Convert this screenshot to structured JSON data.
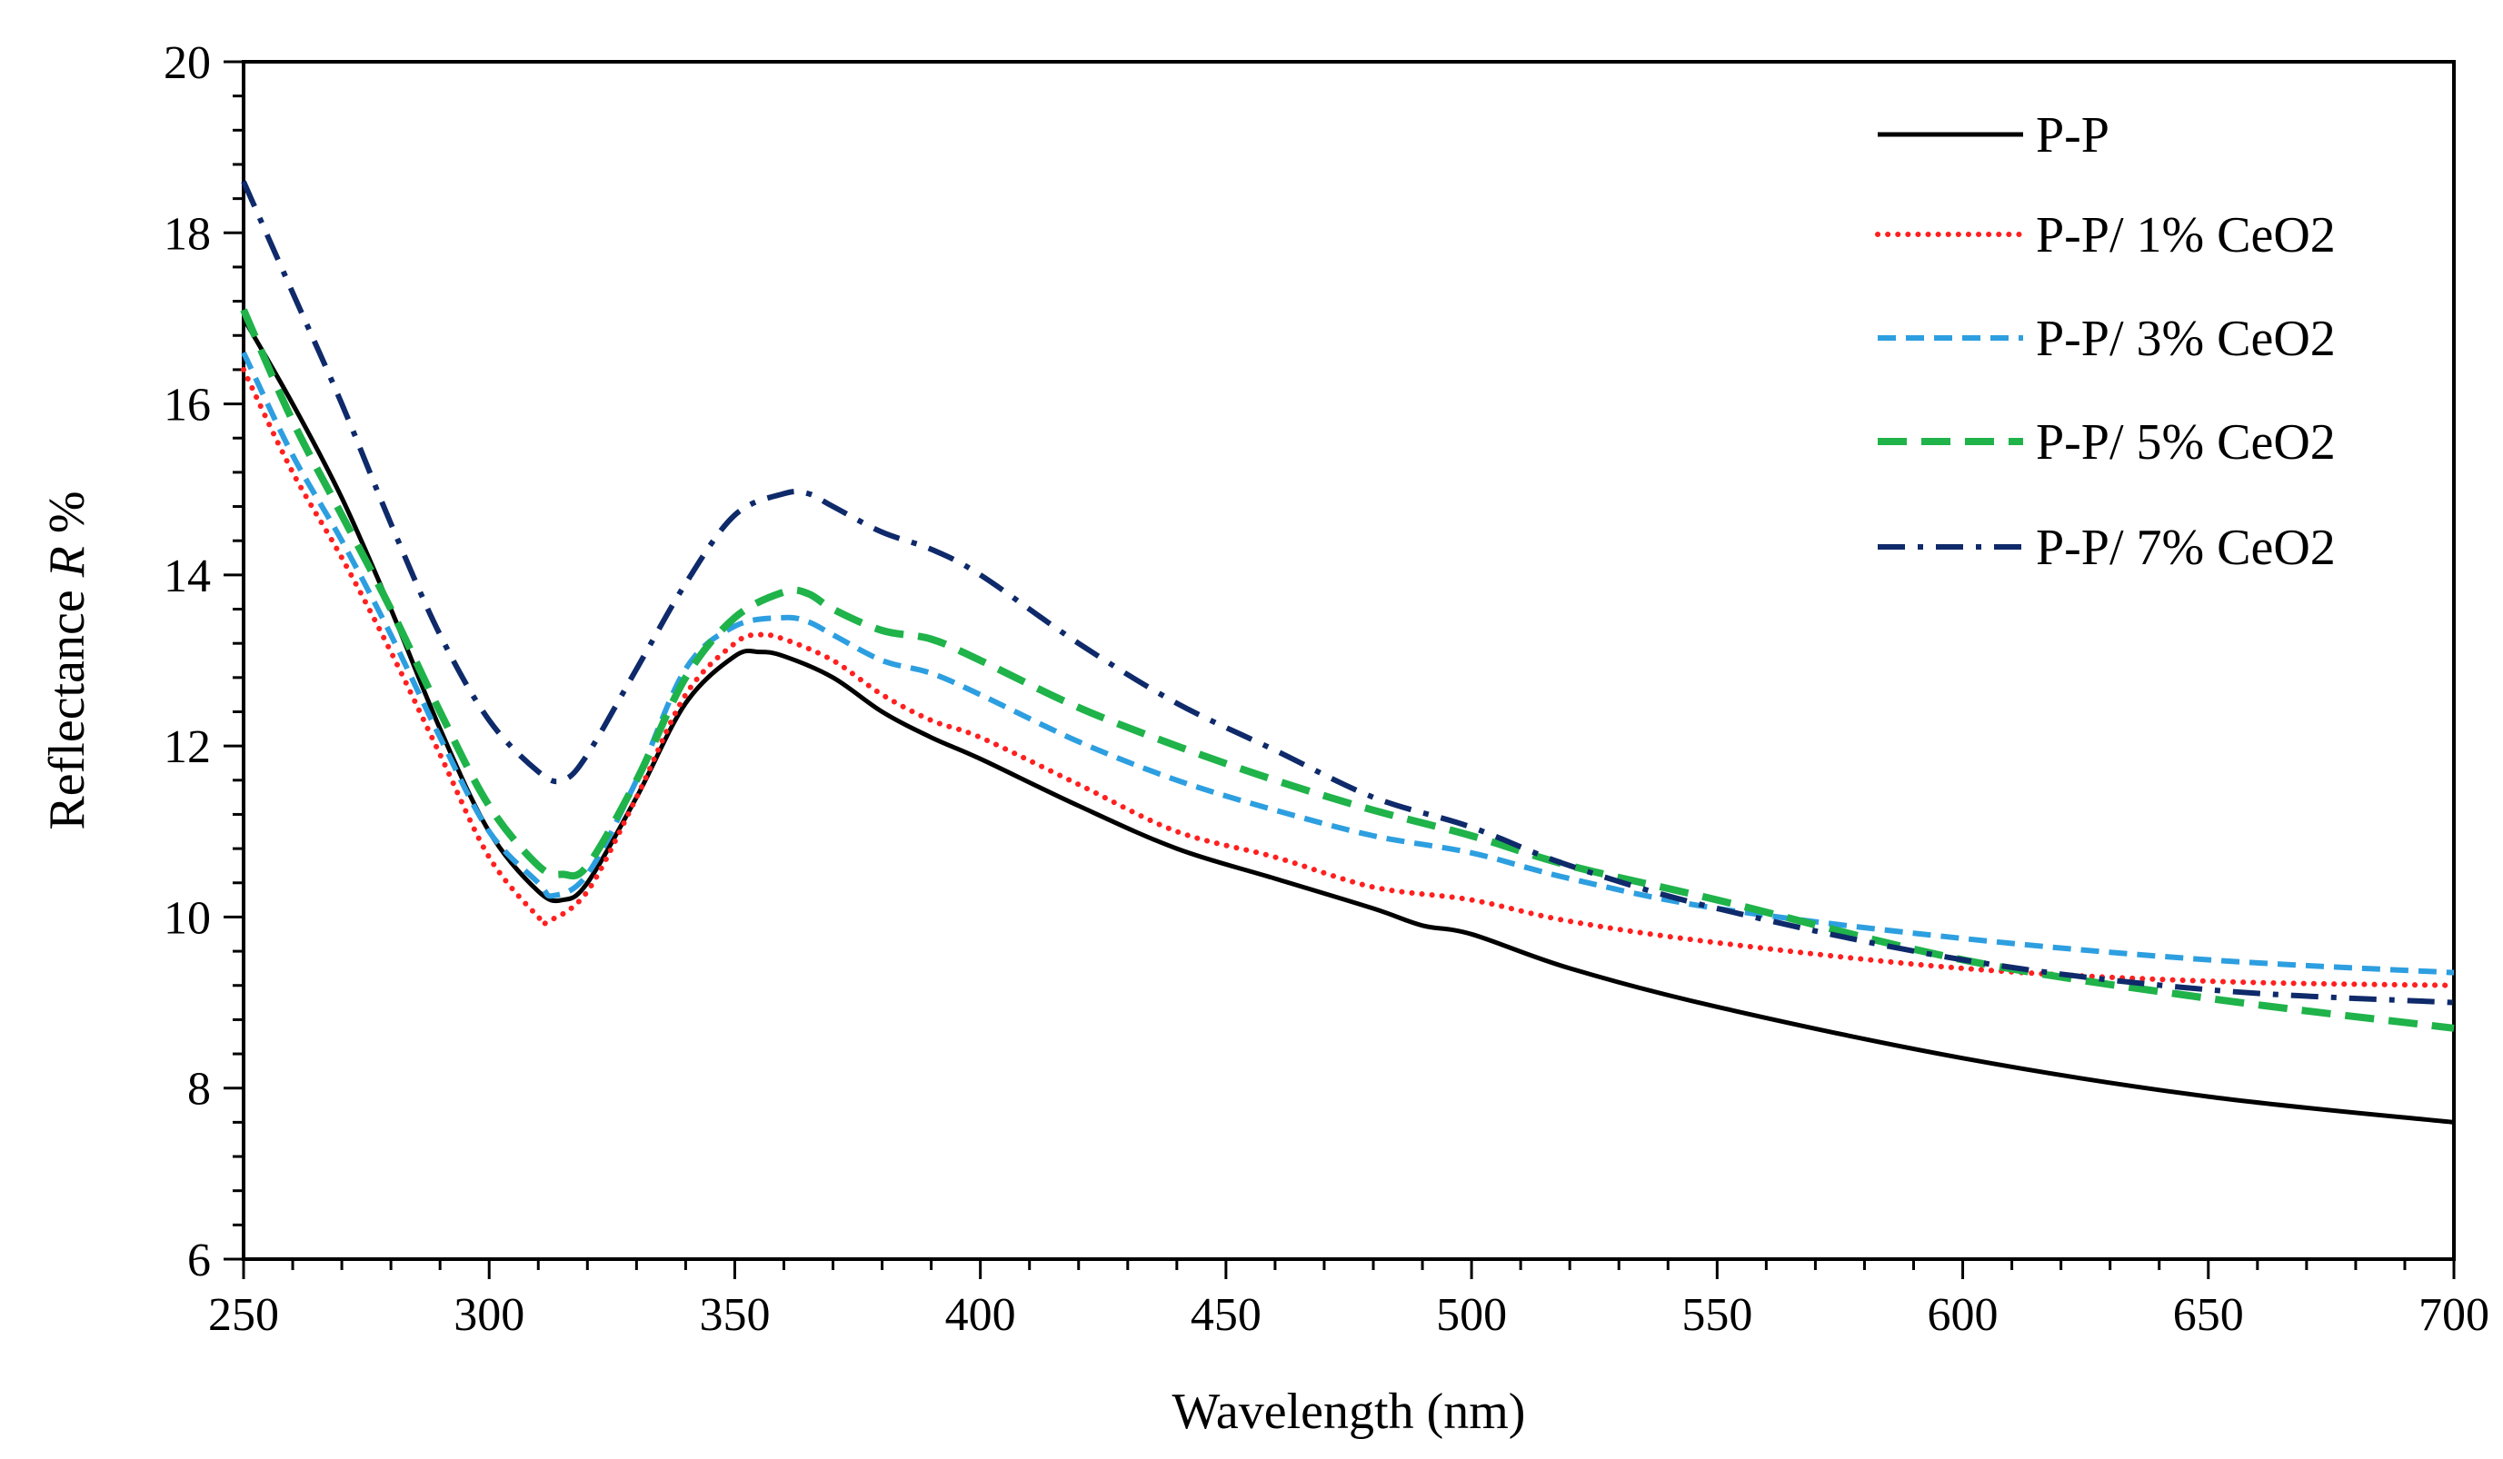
{
  "chart_data": {
    "type": "line",
    "title": "",
    "xlabel": "Wavelength (nm)",
    "ylabel_prefix": "Reflectance ",
    "ylabel_var": "R",
    "ylabel_suffix": " %",
    "xlim": [
      250,
      700
    ],
    "ylim": [
      6,
      20
    ],
    "xticks": [
      250,
      300,
      350,
      400,
      450,
      500,
      550,
      600,
      650,
      700
    ],
    "yticks": [
      6,
      8,
      10,
      12,
      14,
      16,
      18,
      20
    ],
    "grid": false,
    "legend_position": "top-right",
    "series": [
      {
        "name": "P-P",
        "color": "#000000",
        "style": "solid",
        "points": [
          [
            250,
            17.0
          ],
          [
            260,
            16.0
          ],
          [
            270,
            14.9
          ],
          [
            280,
            13.6
          ],
          [
            290,
            12.2
          ],
          [
            300,
            11.0
          ],
          [
            310,
            10.3
          ],
          [
            315,
            10.2
          ],
          [
            320,
            10.4
          ],
          [
            330,
            11.4
          ],
          [
            340,
            12.5
          ],
          [
            350,
            13.05
          ],
          [
            355,
            13.1
          ],
          [
            360,
            13.05
          ],
          [
            370,
            12.8
          ],
          [
            380,
            12.4
          ],
          [
            390,
            12.1
          ],
          [
            400,
            11.85
          ],
          [
            420,
            11.3
          ],
          [
            440,
            10.8
          ],
          [
            460,
            10.45
          ],
          [
            480,
            10.1
          ],
          [
            490,
            9.9
          ],
          [
            500,
            9.8
          ],
          [
            520,
            9.4
          ],
          [
            550,
            8.95
          ],
          [
            600,
            8.35
          ],
          [
            650,
            7.9
          ],
          [
            700,
            7.6
          ]
        ]
      },
      {
        "name": "P-P/ 1% CeO2",
        "color": "#ff2020",
        "style": "dotted",
        "points": [
          [
            250,
            16.4
          ],
          [
            260,
            15.2
          ],
          [
            270,
            14.2
          ],
          [
            280,
            13.1
          ],
          [
            290,
            11.9
          ],
          [
            300,
            10.7
          ],
          [
            310,
            10.0
          ],
          [
            312,
            9.95
          ],
          [
            320,
            10.3
          ],
          [
            330,
            11.4
          ],
          [
            340,
            12.6
          ],
          [
            350,
            13.2
          ],
          [
            355,
            13.3
          ],
          [
            360,
            13.25
          ],
          [
            370,
            13.0
          ],
          [
            380,
            12.6
          ],
          [
            390,
            12.3
          ],
          [
            400,
            12.1
          ],
          [
            420,
            11.55
          ],
          [
            440,
            11.0
          ],
          [
            460,
            10.7
          ],
          [
            480,
            10.35
          ],
          [
            500,
            10.2
          ],
          [
            520,
            9.95
          ],
          [
            550,
            9.7
          ],
          [
            600,
            9.4
          ],
          [
            650,
            9.25
          ],
          [
            700,
            9.2
          ]
        ]
      },
      {
        "name": "P-P/ 3% CeO2",
        "color": "#2d9fe0",
        "style": "dashed",
        "points": [
          [
            250,
            16.6
          ],
          [
            260,
            15.4
          ],
          [
            270,
            14.4
          ],
          [
            280,
            13.3
          ],
          [
            290,
            12.1
          ],
          [
            300,
            11.0
          ],
          [
            310,
            10.4
          ],
          [
            313,
            10.25
          ],
          [
            320,
            10.5
          ],
          [
            330,
            11.6
          ],
          [
            340,
            12.9
          ],
          [
            350,
            13.4
          ],
          [
            360,
            13.5
          ],
          [
            365,
            13.45
          ],
          [
            370,
            13.3
          ],
          [
            380,
            13.0
          ],
          [
            390,
            12.85
          ],
          [
            400,
            12.6
          ],
          [
            420,
            12.05
          ],
          [
            440,
            11.6
          ],
          [
            460,
            11.25
          ],
          [
            480,
            10.95
          ],
          [
            500,
            10.75
          ],
          [
            520,
            10.45
          ],
          [
            550,
            10.1
          ],
          [
            600,
            9.75
          ],
          [
            650,
            9.5
          ],
          [
            700,
            9.35
          ]
        ]
      },
      {
        "name": "P-P/ 5% CeO2",
        "color": "#1fb34a",
        "style": "longdash",
        "points": [
          [
            250,
            17.1
          ],
          [
            260,
            15.8
          ],
          [
            270,
            14.7
          ],
          [
            280,
            13.6
          ],
          [
            290,
            12.4
          ],
          [
            300,
            11.3
          ],
          [
            310,
            10.6
          ],
          [
            315,
            10.5
          ],
          [
            320,
            10.6
          ],
          [
            330,
            11.6
          ],
          [
            340,
            12.8
          ],
          [
            350,
            13.5
          ],
          [
            360,
            13.8
          ],
          [
            365,
            13.78
          ],
          [
            370,
            13.6
          ],
          [
            380,
            13.35
          ],
          [
            390,
            13.25
          ],
          [
            400,
            13.0
          ],
          [
            420,
            12.45
          ],
          [
            440,
            12.0
          ],
          [
            460,
            11.6
          ],
          [
            480,
            11.25
          ],
          [
            500,
            10.95
          ],
          [
            520,
            10.6
          ],
          [
            550,
            10.2
          ],
          [
            600,
            9.5
          ],
          [
            650,
            9.05
          ],
          [
            700,
            8.7
          ]
        ]
      },
      {
        "name": "P-P/ 7% CeO2",
        "color": "#0f2a6a",
        "style": "dashdot",
        "points": [
          [
            250,
            18.6
          ],
          [
            260,
            17.3
          ],
          [
            270,
            16.0
          ],
          [
            280,
            14.6
          ],
          [
            290,
            13.3
          ],
          [
            300,
            12.3
          ],
          [
            310,
            11.7
          ],
          [
            315,
            11.6
          ],
          [
            320,
            11.9
          ],
          [
            330,
            12.9
          ],
          [
            340,
            13.9
          ],
          [
            350,
            14.7
          ],
          [
            360,
            14.95
          ],
          [
            365,
            14.95
          ],
          [
            370,
            14.8
          ],
          [
            380,
            14.5
          ],
          [
            390,
            14.3
          ],
          [
            400,
            14.0
          ],
          [
            420,
            13.2
          ],
          [
            440,
            12.5
          ],
          [
            460,
            11.95
          ],
          [
            480,
            11.4
          ],
          [
            500,
            11.05
          ],
          [
            520,
            10.6
          ],
          [
            550,
            10.1
          ],
          [
            600,
            9.5
          ],
          [
            650,
            9.15
          ],
          [
            700,
            9.0
          ]
        ]
      }
    ]
  }
}
